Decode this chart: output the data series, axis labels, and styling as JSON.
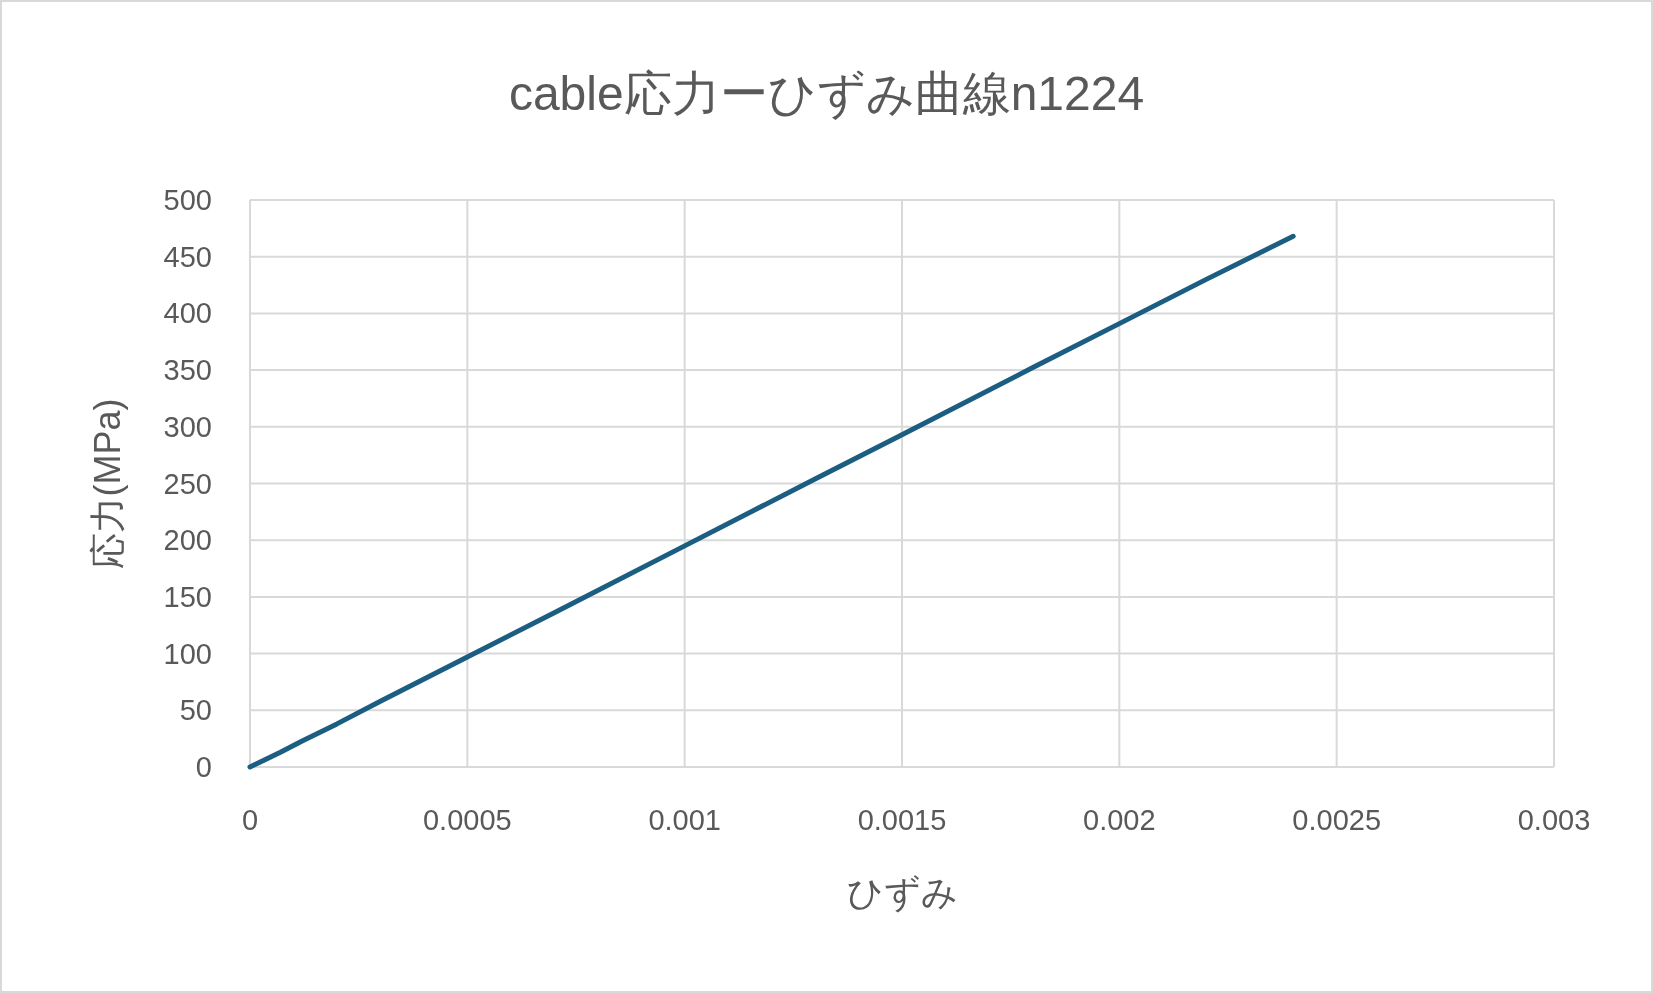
{
  "chart_data": {
    "type": "line",
    "title": "cable応力ーひずみ曲線n1224",
    "xlabel": "ひずみ",
    "ylabel": "応力(MPa)",
    "x": [
      0,
      7e-05,
      0.00012,
      0.0002,
      0.0003,
      0.0005,
      0.0007,
      0.001,
      0.0013,
      0.0015,
      0.0018,
      0.002,
      0.0022,
      0.0024
    ],
    "series": [
      {
        "color": "#1b5e82",
        "values": [
          0,
          13,
          23,
          38,
          58,
          97,
          136,
          195,
          254,
          293,
          352,
          391,
          430,
          468
        ]
      }
    ],
    "xlim": [
      0,
      0.003
    ],
    "ylim": [
      0,
      500
    ],
    "xticks": [
      0,
      0.0005,
      0.001,
      0.0015,
      0.002,
      0.0025,
      0.003
    ],
    "yticks": [
      0,
      50,
      100,
      150,
      200,
      250,
      300,
      350,
      400,
      450,
      500
    ],
    "grid": true,
    "marker": "none",
    "line_style": "solid"
  }
}
